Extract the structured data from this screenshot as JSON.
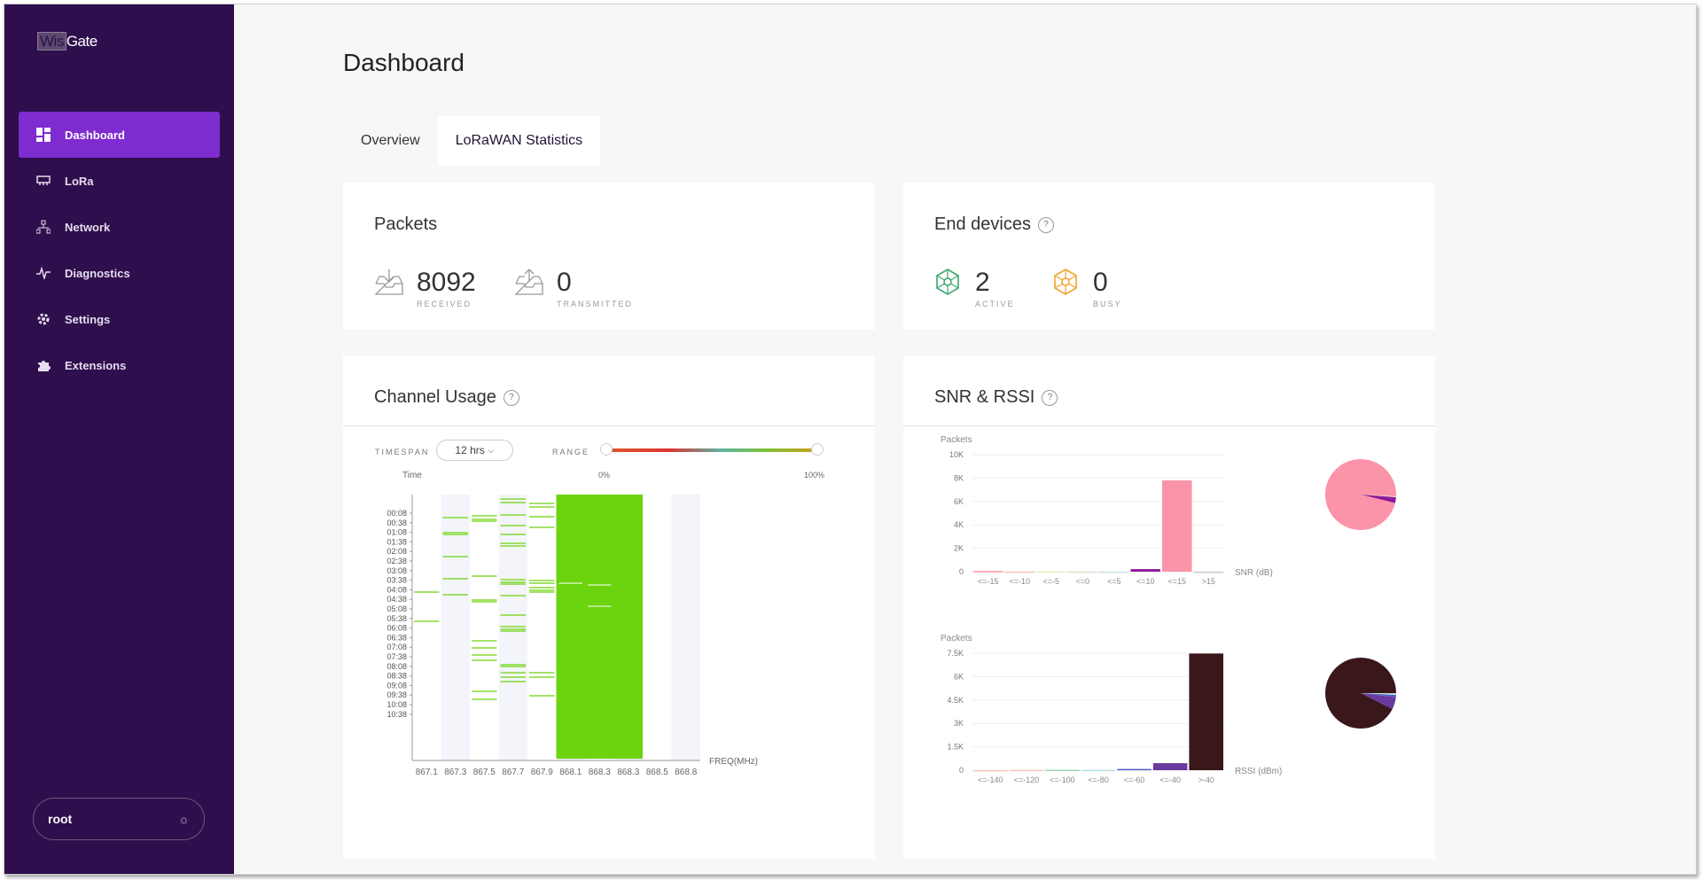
{
  "app": {
    "logo_wis": "Wis",
    "logo_gate": "Gate"
  },
  "sidebar": {
    "items": [
      {
        "label": "Dashboard",
        "icon": "dashboard-icon",
        "active": true
      },
      {
        "label": "LoRa",
        "icon": "lora-icon",
        "active": false
      },
      {
        "label": "Network",
        "icon": "network-icon",
        "active": false
      },
      {
        "label": "Diagnostics",
        "icon": "diagnostics-icon",
        "active": false
      },
      {
        "label": "Settings",
        "icon": "settings-icon",
        "active": false
      },
      {
        "label": "Extensions",
        "icon": "extensions-icon",
        "active": false
      }
    ],
    "user": "root"
  },
  "page": {
    "title": "Dashboard",
    "tabs": [
      "Overview",
      "LoRaWAN Statistics"
    ],
    "active_tab": 1
  },
  "packets": {
    "title": "Packets",
    "received": "8092",
    "received_label": "RECEIVED",
    "transmitted": "0",
    "transmitted_label": "TRANSMITTED"
  },
  "devices": {
    "title": "End devices",
    "active": "2",
    "active_label": "ACTIVE",
    "busy": "0",
    "busy_label": "BUSY"
  },
  "channel": {
    "title": "Channel Usage",
    "timespan_label": "TIMESPAN",
    "timespan_value": "12 hrs",
    "range_label": "RANGE",
    "range_min": "0%",
    "range_max": "100%",
    "time_label": "Time",
    "freq_label": "FREQ(MHz)",
    "times": [
      "00:08",
      "00:38",
      "01:08",
      "01:38",
      "02:08",
      "02:38",
      "03:08",
      "03:38",
      "04:08",
      "04:38",
      "05:08",
      "05:38",
      "06:08",
      "06:38",
      "07:08",
      "07:38",
      "08:08",
      "08:38",
      "09:08",
      "09:38",
      "10:08",
      "10:38"
    ],
    "freqs": [
      "867.1",
      "867.3",
      "867.5",
      "867.7",
      "867.9",
      "868.1",
      "868.3",
      "868.3",
      "868.5",
      "868.8"
    ]
  },
  "snr_rssi": {
    "title": "SNR & RSSI",
    "color_pink": "#fb93a9",
    "color_purple": "#8e1a99",
    "color_dark": "#39171a",
    "color_violet": "#6a3a9e"
  },
  "chart_data": [
    {
      "type": "bar",
      "title": "",
      "ylabel": "Packets",
      "xlabel": "SNR (dB)",
      "ylim": [
        0,
        10000
      ],
      "yticks": [
        "10K",
        "8K",
        "6K",
        "4K",
        "2K",
        "0"
      ],
      "categories": [
        "<=-15",
        "<=-10",
        "<=-5",
        "<=0",
        "<=5",
        "<=10",
        "<=15",
        ">15"
      ],
      "values": [
        60,
        10,
        15,
        5,
        5,
        220,
        7800,
        0
      ]
    },
    {
      "type": "bar",
      "title": "",
      "ylabel": "Packets",
      "xlabel": "RSSI (dBm)",
      "ylim": [
        0,
        7500
      ],
      "yticks": [
        "7.5K",
        "6K",
        "4.5K",
        "3K",
        "1.5K",
        "0"
      ],
      "categories": [
        "<=-140",
        "<=-120",
        "<=-100",
        "<=-80",
        "<=-60",
        "<=-40",
        ">-40"
      ],
      "values": [
        0,
        20,
        30,
        20,
        80,
        450,
        7480
      ]
    }
  ]
}
